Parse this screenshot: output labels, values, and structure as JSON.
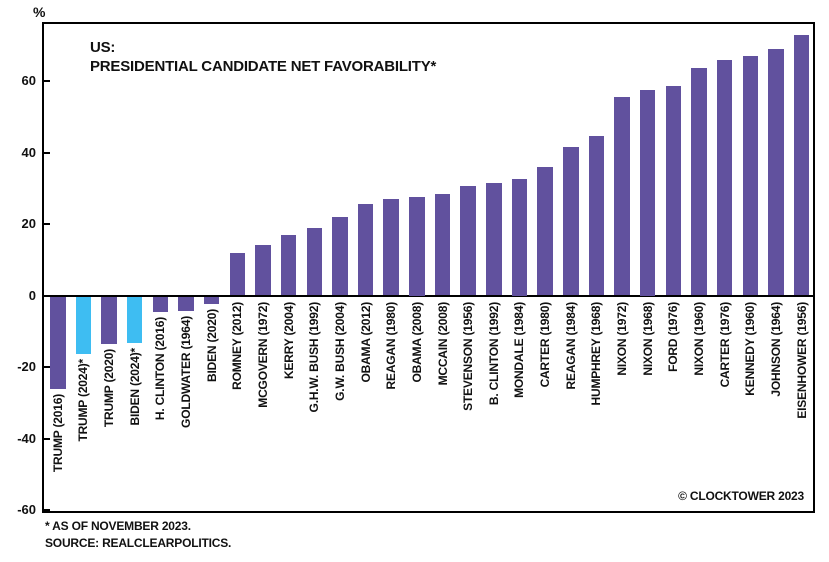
{
  "chart_data": {
    "type": "bar",
    "title_line1": "US:",
    "title_line2": "PRESIDENTIAL CANDIDATE NET FAVORABILITY*",
    "unit_label": "%",
    "categories": [
      "TRUMP (2016)",
      "TRUMP (2024)*",
      "TRUMP (2020)",
      "BIDEN (2024)*",
      "H. CLINTON (2016)",
      "GOLDWATER (1964)",
      "BIDEN (2020)",
      "ROMNEY (2012)",
      "MCGOVERN (1972)",
      "KERRY (2004)",
      "G.H.W. BUSH (1992)",
      "G.W. BUSH (2004)",
      "OBAMA (2012)",
      "REAGAN (1980)",
      "OBAMA (2008)",
      "MCCAIN (2008)",
      "STEVENSON (1956)",
      "B. CLINTON (1992)",
      "MONDALE (1984)",
      "CARTER (1980)",
      "REAGAN (1984)",
      "HUMPHREY (1968)",
      "NIXON (1972)",
      "NIXON (1968)",
      "FORD (1976)",
      "NIXON (1960)",
      "CARTER (1976)",
      "KENNEDY (1960)",
      "JOHNSON (1964)",
      "EISENHOWER (1956)"
    ],
    "values": [
      -26,
      -16,
      -13.4,
      -13,
      -4.3,
      -4,
      -2,
      12,
      14,
      17,
      19,
      22,
      25.5,
      27,
      27.5,
      28.5,
      30.5,
      31.5,
      32.5,
      36,
      41.5,
      44.5,
      55.5,
      57.5,
      58.5,
      63.5,
      66,
      67,
      69,
      73
    ],
    "highlight_indices": [
      1,
      3
    ],
    "bar_color": "#61519E",
    "highlight_color": "#3EBDF2",
    "axis_color": "#000000",
    "yticks": [
      60,
      40,
      20,
      0,
      -20,
      -40,
      -60
    ],
    "ylim": [
      -62,
      76
    ],
    "grid": false,
    "legend": "none",
    "footnote_line1": "*  AS OF NOVEMBER 2023.",
    "footnote_line2": "SOURCE: REALCLEARPOLITICS.",
    "copyright": "© CLOCKTOWER 2023"
  }
}
